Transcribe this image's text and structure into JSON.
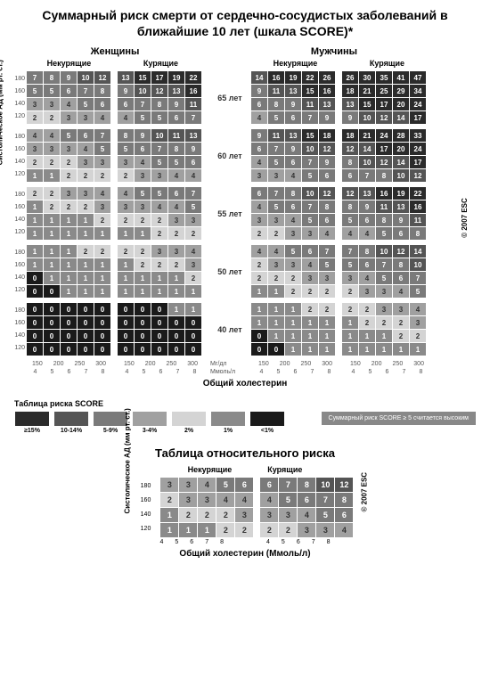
{
  "title": "Суммарный риск смерти от сердечно-сосудистых заболеваний в ближайшие 10 лет (шкала SCORE)*",
  "gender": {
    "women": "Женщины",
    "men": "Мужчины"
  },
  "smoking": {
    "non": "Некурящие",
    "yes": "Курящие"
  },
  "ages": [
    "65 лет",
    "60 лет",
    "55 лет",
    "50 лет",
    "40 лет"
  ],
  "bp_levels": [
    180,
    160,
    140,
    120
  ],
  "chol_mgdl": [
    150,
    200,
    250,
    300
  ],
  "chol_mmol": [
    4,
    5,
    6,
    7,
    8
  ],
  "unit_mgdl": "Мг/дл",
  "unit_mmol": "Ммоль/л",
  "x_axis_label": "Общий холестерин",
  "y_axis_label": "Систолическое АД (мм рт. ст.)",
  "copyright": "© 2007 ESC",
  "legend_title": "Таблица риска SCORE",
  "legend_items": [
    {
      "label": "≥15%",
      "color": "#2b2b2b"
    },
    {
      "label": "10-14%",
      "color": "#555555"
    },
    {
      "label": "5-9%",
      "color": "#7a7a7a"
    },
    {
      "label": "3-4%",
      "color": "#a0a0a0"
    },
    {
      "label": "2%",
      "color": "#d4d4d4"
    },
    {
      "label": "1%",
      "color": "#8a8a8a"
    },
    {
      "label": "<1%",
      "color": "#1a1a1a"
    }
  ],
  "risk_map": {
    "0": "#1a1a1a",
    "1": "#8a8a8a",
    "2": "#d4d4d4",
    "3": "#a0a0a0",
    "4": "#a0a0a0",
    "5": "#7a7a7a",
    "6": "#7a7a7a",
    "7": "#7a7a7a",
    "8": "#7a7a7a",
    "9": "#7a7a7a",
    "10": "#555555",
    "11": "#555555",
    "12": "#555555",
    "13": "#555555",
    "14": "#555555",
    "default": "#2b2b2b"
  },
  "legend_note": "Суммарный риск SCORE ≥ 5 считается высоким",
  "blocks": {
    "65": {
      "wn": [
        [
          7,
          8,
          9,
          10,
          12
        ],
        [
          5,
          5,
          6,
          7,
          8
        ],
        [
          3,
          3,
          4,
          5,
          6
        ],
        [
          2,
          2,
          3,
          3,
          4
        ]
      ],
      "ws": [
        [
          13,
          15,
          17,
          19,
          22
        ],
        [
          9,
          10,
          12,
          13,
          16
        ],
        [
          6,
          7,
          8,
          9,
          11
        ],
        [
          4,
          5,
          5,
          6,
          7
        ]
      ],
      "mn": [
        [
          14,
          16,
          19,
          22,
          26
        ],
        [
          9,
          11,
          13,
          15,
          16
        ],
        [
          6,
          8,
          9,
          11,
          13
        ],
        [
          4,
          5,
          6,
          7,
          9
        ]
      ],
      "ms": [
        [
          26,
          30,
          35,
          41,
          47
        ],
        [
          18,
          21,
          25,
          29,
          34
        ],
        [
          13,
          15,
          17,
          20,
          24
        ],
        [
          9,
          10,
          12,
          14,
          17
        ]
      ]
    },
    "60": {
      "wn": [
        [
          4,
          4,
          5,
          6,
          7
        ],
        [
          3,
          3,
          3,
          4,
          5
        ],
        [
          2,
          2,
          2,
          3,
          3
        ],
        [
          1,
          1,
          2,
          2,
          2
        ]
      ],
      "ws": [
        [
          8,
          9,
          10,
          11,
          13
        ],
        [
          5,
          6,
          7,
          8,
          9
        ],
        [
          3,
          4,
          5,
          5,
          6
        ],
        [
          2,
          3,
          3,
          4,
          4
        ]
      ],
      "mn": [
        [
          9,
          11,
          13,
          15,
          18
        ],
        [
          6,
          7,
          9,
          10,
          12
        ],
        [
          4,
          5,
          6,
          7,
          9
        ],
        [
          3,
          3,
          4,
          5,
          6
        ]
      ],
      "ms": [
        [
          18,
          21,
          24,
          28,
          33
        ],
        [
          12,
          14,
          17,
          20,
          24
        ],
        [
          8,
          10,
          12,
          14,
          17
        ],
        [
          6,
          7,
          8,
          10,
          12
        ]
      ]
    },
    "55": {
      "wn": [
        [
          2,
          2,
          3,
          3,
          4
        ],
        [
          1,
          2,
          2,
          2,
          3
        ],
        [
          1,
          1,
          1,
          1,
          2
        ],
        [
          1,
          1,
          1,
          1,
          1
        ]
      ],
      "ws": [
        [
          4,
          5,
          5,
          6,
          7
        ],
        [
          3,
          3,
          4,
          4,
          5
        ],
        [
          2,
          2,
          2,
          3,
          3
        ],
        [
          1,
          1,
          2,
          2,
          2
        ]
      ],
      "mn": [
        [
          6,
          7,
          8,
          10,
          12
        ],
        [
          4,
          5,
          6,
          7,
          8
        ],
        [
          3,
          3,
          4,
          5,
          6
        ],
        [
          2,
          2,
          3,
          3,
          4
        ]
      ],
      "ms": [
        [
          12,
          13,
          16,
          19,
          22
        ],
        [
          8,
          9,
          11,
          13,
          16
        ],
        [
          5,
          6,
          8,
          9,
          11
        ],
        [
          4,
          4,
          5,
          6,
          8
        ]
      ]
    },
    "50": {
      "wn": [
        [
          1,
          1,
          1,
          2,
          2
        ],
        [
          1,
          1,
          1,
          1,
          1
        ],
        [
          0,
          1,
          1,
          1,
          1
        ],
        [
          0,
          0,
          1,
          1,
          1
        ]
      ],
      "ws": [
        [
          2,
          2,
          3,
          3,
          4
        ],
        [
          1,
          2,
          2,
          2,
          3
        ],
        [
          1,
          1,
          1,
          1,
          2
        ],
        [
          1,
          1,
          1,
          1,
          1
        ]
      ],
      "mn": [
        [
          4,
          4,
          5,
          6,
          7
        ],
        [
          2,
          3,
          3,
          4,
          5
        ],
        [
          2,
          2,
          2,
          3,
          3
        ],
        [
          1,
          1,
          2,
          2,
          2
        ]
      ],
      "ms": [
        [
          7,
          8,
          10,
          12,
          14
        ],
        [
          5,
          6,
          7,
          8,
          10
        ],
        [
          3,
          4,
          5,
          6,
          7
        ],
        [
          2,
          3,
          3,
          4,
          5
        ]
      ]
    },
    "40": {
      "wn": [
        [
          0,
          0,
          0,
          0,
          0
        ],
        [
          0,
          0,
          0,
          0,
          0
        ],
        [
          0,
          0,
          0,
          0,
          0
        ],
        [
          0,
          0,
          0,
          0,
          0
        ]
      ],
      "ws": [
        [
          0,
          0,
          0,
          1,
          1
        ],
        [
          0,
          0,
          0,
          0,
          0
        ],
        [
          0,
          0,
          0,
          0,
          0
        ],
        [
          0,
          0,
          0,
          0,
          0
        ]
      ],
      "mn": [
        [
          1,
          1,
          1,
          2,
          2
        ],
        [
          1,
          1,
          1,
          1,
          1
        ],
        [
          0,
          1,
          1,
          1,
          1
        ],
        [
          0,
          0,
          1,
          1,
          1
        ]
      ],
      "ms": [
        [
          2,
          2,
          3,
          3,
          4
        ],
        [
          1,
          2,
          2,
          2,
          3
        ],
        [
          1,
          1,
          1,
          2,
          2
        ],
        [
          1,
          1,
          1,
          1,
          1
        ]
      ]
    }
  },
  "rel_title": "Таблица относительного риска",
  "rel_x_label": "Общий холестерин (Ммоль/л)",
  "rel_blocks": {
    "non": [
      [
        3,
        3,
        4,
        5,
        6
      ],
      [
        2,
        3,
        3,
        4,
        4
      ],
      [
        1,
        2,
        2,
        2,
        3
      ],
      [
        1,
        1,
        1,
        2,
        2
      ]
    ],
    "yes": [
      [
        6,
        7,
        8,
        10,
        12
      ],
      [
        4,
        5,
        6,
        7,
        8
      ],
      [
        3,
        3,
        4,
        5,
        6
      ],
      [
        2,
        2,
        3,
        3,
        4
      ]
    ]
  }
}
